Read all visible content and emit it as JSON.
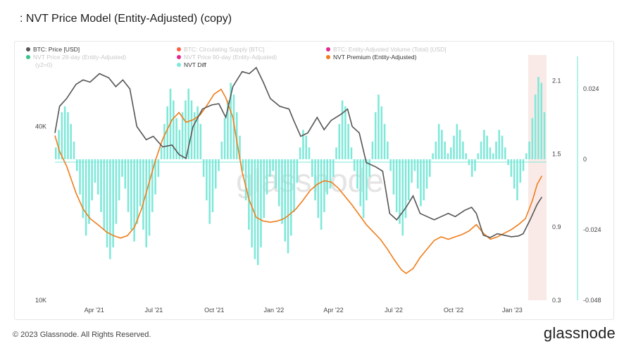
{
  "title": ": NVT Price Model (Entity-Adjusted) (copy)",
  "footer": {
    "copyright": "© 2023 Glassnode. All Rights Reserved.",
    "brand": "glassnode"
  },
  "watermark": "glassnode",
  "colors": {
    "price": "#555555",
    "supply": "#ff4d2e",
    "volume": "#e0117f",
    "nvt28": "#1fbf7a",
    "nvt90": "#e0117f",
    "premium": "#f07d1a",
    "diff": "#7fe8d9",
    "shade": "#f6d9d4"
  },
  "chart_data": {
    "type": "line",
    "legend": [
      {
        "name": "BTC: Price [USD]",
        "color": "#555555",
        "faded": false
      },
      {
        "name": "BTC: Circulating Supply [BTC]",
        "color": "#ff4d2e",
        "faded": true
      },
      {
        "name": "BTC: Entity-Adjusted Volume (Total) [USD]",
        "color": "#e0117f",
        "faded": true
      },
      {
        "name": "NVT Price 28-day (Entity-Adjusted)",
        "color": "#1fbf7a",
        "faded": true
      },
      {
        "name": "NVT Price 90-day (Entity-Adjusted)",
        "color": "#e0117f",
        "faded": true
      },
      {
        "name": "NVT Premium (Entity-Adjusted)",
        "color": "#f07d1a",
        "faded": false
      },
      {
        "name": "(y2=0)",
        "color": null,
        "faded": true
      },
      {
        "name": "NVT Diff",
        "color": "#7fe8d9",
        "faded": false
      }
    ],
    "x_ticks": [
      "Apr '21",
      "Jul '21",
      "Oct '21",
      "Jan '22",
      "Apr '22",
      "Jul '22",
      "Oct '22",
      "Jan '23"
    ],
    "x_tick_pos": [
      0.132,
      0.332,
      0.535,
      0.735,
      0.935,
      1.137,
      1.338,
      1.535
    ],
    "x_range": [
      2021.0,
      2023.1
    ],
    "y_left": {
      "scale": "log",
      "ticks": [
        "40K",
        "10K"
      ],
      "tick_values": [
        40000,
        10000
      ],
      "range": [
        10000,
        70000
      ]
    },
    "y_right1": {
      "ticks": [
        "2.1",
        "1.5",
        "0.9",
        "0.3"
      ],
      "tick_values": [
        2.1,
        1.5,
        0.9,
        0.3
      ],
      "range": [
        0.3,
        2.3
      ]
    },
    "y_right2": {
      "ticks": [
        "0.024",
        "0",
        "-0.024",
        "-0.048"
      ],
      "tick_values": [
        0.024,
        0,
        -0.024,
        -0.048
      ],
      "range": [
        -0.048,
        0.035
      ]
    },
    "series": [
      {
        "name": "BTC: Price [USD]",
        "axis": "left",
        "points": [
          [
            2021.0,
            38000
          ],
          [
            2021.02,
            47000
          ],
          [
            2021.05,
            50000
          ],
          [
            2021.09,
            56000
          ],
          [
            2021.12,
            58000
          ],
          [
            2021.15,
            57000
          ],
          [
            2021.19,
            61000
          ],
          [
            2021.23,
            59000
          ],
          [
            2021.26,
            55000
          ],
          [
            2021.29,
            58000
          ],
          [
            2021.32,
            54000
          ],
          [
            2021.35,
            40000
          ],
          [
            2021.39,
            36000
          ],
          [
            2021.42,
            37000
          ],
          [
            2021.46,
            34000
          ],
          [
            2021.5,
            34500
          ],
          [
            2021.53,
            32000
          ],
          [
            2021.56,
            31000
          ],
          [
            2021.59,
            40000
          ],
          [
            2021.63,
            46000
          ],
          [
            2021.67,
            47500
          ],
          [
            2021.7,
            48000
          ],
          [
            2021.73,
            43000
          ],
          [
            2021.76,
            55000
          ],
          [
            2021.8,
            62000
          ],
          [
            2021.83,
            61000
          ],
          [
            2021.86,
            64000
          ],
          [
            2021.89,
            57000
          ],
          [
            2021.92,
            50000
          ],
          [
            2021.96,
            47000
          ],
          [
            2022.0,
            46000
          ],
          [
            2022.02,
            42000
          ],
          [
            2022.05,
            37000
          ],
          [
            2022.08,
            38000
          ],
          [
            2022.12,
            43000
          ],
          [
            2022.15,
            39000
          ],
          [
            2022.18,
            42000
          ],
          [
            2022.22,
            44000
          ],
          [
            2022.25,
            46000
          ],
          [
            2022.27,
            40000
          ],
          [
            2022.3,
            38000
          ],
          [
            2022.33,
            30000
          ],
          [
            2022.37,
            29000
          ],
          [
            2022.4,
            28000
          ],
          [
            2022.43,
            20000
          ],
          [
            2022.46,
            19000
          ],
          [
            2022.5,
            21000
          ],
          [
            2022.53,
            23000
          ],
          [
            2022.56,
            20000
          ],
          [
            2022.59,
            19500
          ],
          [
            2022.62,
            19000
          ],
          [
            2022.65,
            19500
          ],
          [
            2022.68,
            20000
          ],
          [
            2022.71,
            19500
          ],
          [
            2022.75,
            20500
          ],
          [
            2022.78,
            21000
          ],
          [
            2022.8,
            20000
          ],
          [
            2022.83,
            16800
          ],
          [
            2022.86,
            16500
          ],
          [
            2022.89,
            17000
          ],
          [
            2022.92,
            16800
          ],
          [
            2022.95,
            16600
          ],
          [
            2022.98,
            16700
          ],
          [
            2023.0,
            17000
          ],
          [
            2023.03,
            19000
          ],
          [
            2023.06,
            21500
          ],
          [
            2023.08,
            22800
          ]
        ]
      },
      {
        "name": "NVT Premium (Entity-Adjusted)",
        "axis": "right1",
        "points": [
          [
            2021.0,
            1.65
          ],
          [
            2021.02,
            1.52
          ],
          [
            2021.05,
            1.4
          ],
          [
            2021.09,
            1.18
          ],
          [
            2021.12,
            1.05
          ],
          [
            2021.15,
            0.97
          ],
          [
            2021.19,
            0.91
          ],
          [
            2021.22,
            0.86
          ],
          [
            2021.25,
            0.83
          ],
          [
            2021.28,
            0.81
          ],
          [
            2021.31,
            0.83
          ],
          [
            2021.34,
            0.9
          ],
          [
            2021.37,
            1.05
          ],
          [
            2021.4,
            1.25
          ],
          [
            2021.43,
            1.45
          ],
          [
            2021.46,
            1.62
          ],
          [
            2021.5,
            1.78
          ],
          [
            2021.53,
            1.84
          ],
          [
            2021.56,
            1.76
          ],
          [
            2021.59,
            1.78
          ],
          [
            2021.62,
            1.82
          ],
          [
            2021.65,
            1.9
          ],
          [
            2021.68,
            1.99
          ],
          [
            2021.71,
            2.03
          ],
          [
            2021.73,
            1.96
          ],
          [
            2021.76,
            1.8
          ],
          [
            2021.78,
            1.57
          ],
          [
            2021.8,
            1.35
          ],
          [
            2021.83,
            1.12
          ],
          [
            2021.86,
            0.98
          ],
          [
            2021.89,
            0.95
          ],
          [
            2021.92,
            0.94
          ],
          [
            2021.95,
            0.95
          ],
          [
            2021.98,
            0.97
          ],
          [
            2022.0,
            1.0
          ],
          [
            2022.03,
            1.05
          ],
          [
            2022.06,
            1.12
          ],
          [
            2022.09,
            1.2
          ],
          [
            2022.12,
            1.25
          ],
          [
            2022.15,
            1.28
          ],
          [
            2022.18,
            1.27
          ],
          [
            2022.21,
            1.22
          ],
          [
            2022.24,
            1.15
          ],
          [
            2022.27,
            1.08
          ],
          [
            2022.3,
            1.0
          ],
          [
            2022.33,
            0.92
          ],
          [
            2022.36,
            0.86
          ],
          [
            2022.39,
            0.8
          ],
          [
            2022.42,
            0.72
          ],
          [
            2022.45,
            0.63
          ],
          [
            2022.48,
            0.55
          ],
          [
            2022.5,
            0.52
          ],
          [
            2022.53,
            0.56
          ],
          [
            2022.56,
            0.65
          ],
          [
            2022.59,
            0.72
          ],
          [
            2022.62,
            0.79
          ],
          [
            2022.65,
            0.82
          ],
          [
            2022.68,
            0.8
          ],
          [
            2022.71,
            0.82
          ],
          [
            2022.74,
            0.84
          ],
          [
            2022.77,
            0.87
          ],
          [
            2022.8,
            0.92
          ],
          [
            2022.83,
            0.85
          ],
          [
            2022.86,
            0.8
          ],
          [
            2022.89,
            0.82
          ],
          [
            2022.92,
            0.85
          ],
          [
            2022.95,
            0.88
          ],
          [
            2022.98,
            0.92
          ],
          [
            2023.01,
            0.97
          ],
          [
            2023.04,
            1.12
          ],
          [
            2023.06,
            1.25
          ],
          [
            2023.08,
            1.32
          ]
        ]
      },
      {
        "name": "NVT Diff",
        "axis": "right2",
        "values": [
          0.004,
          0.01,
          0.016,
          0.018,
          0.016,
          0.012,
          0.006,
          -0.004,
          -0.012,
          -0.02,
          -0.026,
          -0.022,
          -0.014,
          -0.008,
          -0.012,
          -0.018,
          -0.024,
          -0.03,
          -0.034,
          -0.03,
          -0.022,
          -0.014,
          -0.006,
          -0.01,
          -0.018,
          -0.024,
          -0.028,
          -0.022,
          -0.016,
          -0.024,
          -0.03,
          -0.026,
          -0.018,
          -0.012,
          -0.006,
          0.004,
          0.012,
          0.018,
          0.024,
          0.02,
          0.014,
          0.01,
          0.016,
          0.02,
          0.024,
          0.02,
          0.016,
          0.018,
          0.012,
          -0.006,
          -0.014,
          -0.022,
          -0.018,
          -0.01,
          -0.004,
          0.006,
          0.014,
          0.02,
          0.026,
          0.022,
          0.016,
          0.008,
          -0.004,
          -0.014,
          -0.024,
          -0.03,
          -0.034,
          -0.036,
          -0.03,
          -0.02,
          -0.012,
          -0.006,
          -0.004,
          -0.01,
          -0.016,
          -0.022,
          -0.028,
          -0.032,
          -0.026,
          -0.018,
          -0.008,
          0.004,
          0.01,
          0.008,
          0.004,
          -0.006,
          -0.014,
          -0.02,
          -0.024,
          -0.018,
          -0.012,
          -0.01,
          -0.006,
          0.004,
          0.012,
          0.02,
          0.018,
          0.012,
          0.004,
          -0.004,
          -0.01,
          -0.016,
          -0.02,
          -0.014,
          -0.006,
          0.006,
          0.016,
          0.022,
          0.018,
          0.012,
          0.006,
          -0.004,
          -0.012,
          -0.018,
          -0.022,
          -0.026,
          -0.02,
          -0.014,
          -0.008,
          -0.004,
          -0.01,
          -0.016,
          -0.014,
          -0.01,
          -0.006,
          0.002,
          0.006,
          0.012,
          0.01,
          0.006,
          0.002,
          0.004,
          0.008,
          0.012,
          0.01,
          0.006,
          0.002,
          -0.002,
          -0.006,
          -0.004,
          0.002,
          0.006,
          0.01,
          0.008,
          0.004,
          0.002,
          0.006,
          0.01,
          0.008,
          0.004,
          -0.002,
          -0.006,
          -0.01,
          -0.014,
          -0.008,
          -0.004,
          0.002,
          0.006,
          0.014,
          0.022,
          0.028,
          0.026,
          0.016
        ]
      }
    ]
  }
}
